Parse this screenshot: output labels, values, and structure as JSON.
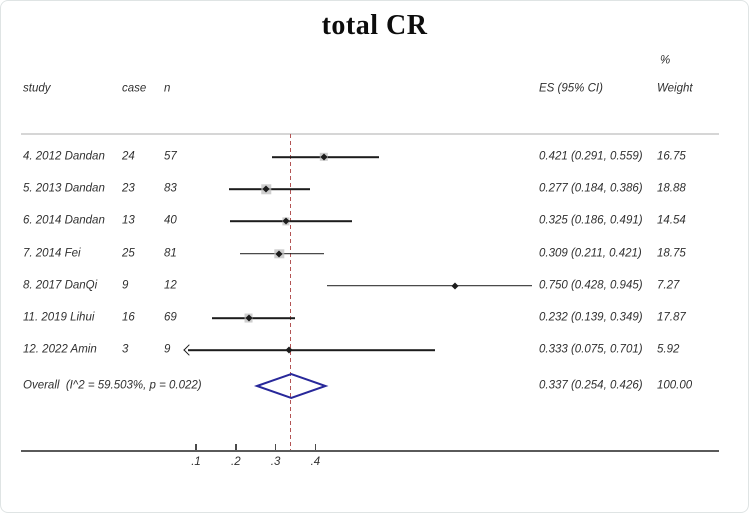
{
  "title": "total CR",
  "headers": {
    "study": "study",
    "case": "case",
    "n": "n",
    "es": "ES (95% CI)",
    "pct": "%",
    "weight": "Weight"
  },
  "colors": {
    "dashed_line": "#b35454",
    "diamond_outline": "#28289a",
    "ci_line": "#1c1c1c",
    "weight_square": "#bdbdbd",
    "axis_line": "#5a5a5a"
  },
  "chart_data": {
    "type": "forest",
    "title": "total CR",
    "x_ticks": [
      {
        "label": ".1",
        "value": 0.1
      },
      {
        "label": ".2",
        "value": 0.2
      },
      {
        "label": ".3",
        "value": 0.3
      },
      {
        "label": ".4",
        "value": 0.4
      }
    ],
    "reference_line_value": 0.337,
    "studies": [
      {
        "label": "4. 2012 Dandan",
        "case": "24",
        "n": "57",
        "es": 0.421,
        "lo": 0.291,
        "hi": 0.559,
        "es_text": "0.421 (0.291, 0.559)",
        "weight_text": "16.75",
        "weight": 16.75,
        "truncated_left": false
      },
      {
        "label": "5. 2013 Dandan",
        "case": "23",
        "n": "83",
        "es": 0.277,
        "lo": 0.184,
        "hi": 0.386,
        "es_text": "0.277 (0.184, 0.386)",
        "weight_text": "18.88",
        "weight": 18.88,
        "truncated_left": false
      },
      {
        "label": "6. 2014 Dandan",
        "case": "13",
        "n": "40",
        "es": 0.325,
        "lo": 0.186,
        "hi": 0.491,
        "es_text": "0.325 (0.186, 0.491)",
        "weight_text": "14.54",
        "weight": 14.54,
        "truncated_left": false
      },
      {
        "label": "7. 2014 Fei",
        "case": "25",
        "n": "81",
        "es": 0.309,
        "lo": 0.211,
        "hi": 0.421,
        "es_text": "0.309 (0.211, 0.421)",
        "weight_text": "18.75",
        "weight": 18.75,
        "truncated_left": false
      },
      {
        "label": "8. 2017 DanQi",
        "case": "9",
        "n": "12",
        "es": 0.75,
        "lo": 0.428,
        "hi": 0.945,
        "es_text": "0.750 (0.428, 0.945)",
        "weight_text": "7.27",
        "weight": 7.27,
        "truncated_left": false
      },
      {
        "label": "11. 2019 Lihui",
        "case": "16",
        "n": "69",
        "es": 0.232,
        "lo": 0.139,
        "hi": 0.349,
        "es_text": "0.232 (0.139, 0.349)",
        "weight_text": "17.87",
        "weight": 17.87,
        "truncated_left": false
      },
      {
        "label": "12. 2022 Amin",
        "case": "3",
        "n": "9",
        "es": 0.333,
        "lo": 0.075,
        "hi": 0.701,
        "es_text": "0.333 (0.075, 0.701)",
        "weight_text": "5.92",
        "weight": 5.92,
        "truncated_left": true
      }
    ],
    "overall": {
      "label": "Overall  (I^2 = 59.503%, p = 0.022)",
      "es": 0.337,
      "lo": 0.254,
      "hi": 0.426,
      "es_text": "0.337 (0.254, 0.426)",
      "weight_text": "100.00"
    }
  }
}
